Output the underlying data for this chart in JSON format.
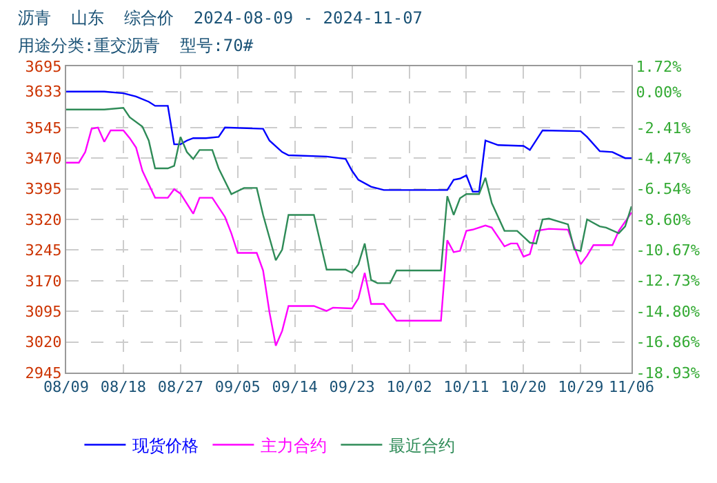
{
  "chart_data": {
    "type": "line",
    "title": "沥青  山东  综合价  2024-08-09 - 2024-11-07",
    "subtitle": "用途分类:重交沥青  型号:70#",
    "series": [
      {
        "name": "现货价格",
        "color": "#0000ff",
        "x": [
          "2024-08-09",
          "2024-08-15",
          "2024-08-18",
          "2024-08-20",
          "2024-08-22",
          "2024-08-23",
          "2024-08-25",
          "2024-08-26",
          "2024-08-27",
          "2024-08-28",
          "2024-08-29",
          "2024-08-31",
          "2024-09-02",
          "2024-09-03",
          "2024-09-09",
          "2024-09-10",
          "2024-09-12",
          "2024-09-13",
          "2024-09-19",
          "2024-09-22",
          "2024-09-23",
          "2024-09-24",
          "2024-09-26",
          "2024-09-28",
          "2024-10-08",
          "2024-10-09",
          "2024-10-10",
          "2024-10-11",
          "2024-10-12",
          "2024-10-13",
          "2024-10-14",
          "2024-10-16",
          "2024-10-20",
          "2024-10-21",
          "2024-10-23",
          "2024-10-29",
          "2024-10-30",
          "2024-11-01",
          "2024-11-03",
          "2024-11-05",
          "2024-11-06"
        ],
        "values": [
          3633,
          3633,
          3629,
          3621,
          3608,
          3598,
          3598,
          3504,
          3504,
          3513,
          3519,
          3519,
          3522,
          3545,
          3542,
          3513,
          3485,
          3477,
          3474,
          3468,
          3439,
          3417,
          3400,
          3392,
          3392,
          3417,
          3420,
          3428,
          3388,
          3388,
          3513,
          3502,
          3500,
          3490,
          3538,
          3536,
          3522,
          3487,
          3485,
          3470,
          3470
        ]
      },
      {
        "name": "主力合约",
        "color": "#ff00ff",
        "x": [
          "2024-08-09",
          "2024-08-11",
          "2024-08-12",
          "2024-08-13",
          "2024-08-14",
          "2024-08-15",
          "2024-08-16",
          "2024-08-18",
          "2024-08-19",
          "2024-08-20",
          "2024-08-21",
          "2024-08-23",
          "2024-08-25",
          "2024-08-26",
          "2024-08-27",
          "2024-08-29",
          "2024-08-30",
          "2024-09-01",
          "2024-09-03",
          "2024-09-04",
          "2024-09-05",
          "2024-09-08",
          "2024-09-09",
          "2024-09-10",
          "2024-09-11",
          "2024-09-12",
          "2024-09-13",
          "2024-09-17",
          "2024-09-19",
          "2024-09-20",
          "2024-09-23",
          "2024-09-24",
          "2024-09-25",
          "2024-09-26",
          "2024-09-28",
          "2024-09-30",
          "2024-10-07",
          "2024-10-08",
          "2024-10-09",
          "2024-10-10",
          "2024-10-11",
          "2024-10-12",
          "2024-10-14",
          "2024-10-15",
          "2024-10-17",
          "2024-10-18",
          "2024-10-19",
          "2024-10-20",
          "2024-10-21",
          "2024-10-22",
          "2024-10-24",
          "2024-10-27",
          "2024-10-28",
          "2024-10-29",
          "2024-10-30",
          "2024-10-31",
          "2024-11-03",
          "2024-11-04",
          "2024-11-06"
        ],
        "values": [
          3459,
          3459,
          3485,
          3542,
          3545,
          3510,
          3538,
          3538,
          3519,
          3496,
          3439,
          3373,
          3373,
          3394,
          3383,
          3334,
          3373,
          3373,
          3326,
          3286,
          3238,
          3238,
          3195,
          3093,
          3011,
          3047,
          3108,
          3108,
          3096,
          3104,
          3102,
          3127,
          3189,
          3113,
          3113,
          3072,
          3072,
          3269,
          3240,
          3243,
          3292,
          3295,
          3305,
          3300,
          3254,
          3261,
          3261,
          3229,
          3235,
          3292,
          3297,
          3295,
          3252,
          3210,
          3231,
          3257,
          3257,
          3292,
          3337
        ]
      },
      {
        "name": "最近合约",
        "color": "#2e8b57",
        "x": [
          "2024-08-09",
          "2024-08-15",
          "2024-08-18",
          "2024-08-19",
          "2024-08-21",
          "2024-08-22",
          "2024-08-23",
          "2024-08-25",
          "2024-08-26",
          "2024-08-27",
          "2024-08-28",
          "2024-08-29",
          "2024-08-30",
          "2024-09-01",
          "2024-09-02",
          "2024-09-04",
          "2024-09-06",
          "2024-09-08",
          "2024-09-09",
          "2024-09-11",
          "2024-09-12",
          "2024-09-13",
          "2024-09-17",
          "2024-09-19",
          "2024-09-22",
          "2024-09-23",
          "2024-09-24",
          "2024-09-25",
          "2024-09-26",
          "2024-09-27",
          "2024-09-29",
          "2024-09-30",
          "2024-10-07",
          "2024-10-08",
          "2024-10-09",
          "2024-10-10",
          "2024-10-11",
          "2024-10-13",
          "2024-10-14",
          "2024-10-15",
          "2024-10-17",
          "2024-10-19",
          "2024-10-21",
          "2024-10-22",
          "2024-10-23",
          "2024-10-24",
          "2024-10-27",
          "2024-10-28",
          "2024-10-29",
          "2024-10-30",
          "2024-11-01",
          "2024-11-02",
          "2024-11-04",
          "2024-11-05",
          "2024-11-06"
        ],
        "values": [
          3589,
          3589,
          3593,
          3570,
          3547,
          3513,
          3445,
          3445,
          3451,
          3522,
          3485,
          3468,
          3490,
          3490,
          3445,
          3382,
          3397,
          3397,
          3331,
          3220,
          3246,
          3331,
          3331,
          3197,
          3197,
          3189,
          3210,
          3261,
          3172,
          3164,
          3164,
          3195,
          3195,
          3377,
          3331,
          3372,
          3382,
          3382,
          3422,
          3360,
          3292,
          3292,
          3263,
          3261,
          3320,
          3322,
          3308,
          3246,
          3243,
          3320,
          3303,
          3300,
          3286,
          3303,
          3352
        ]
      }
    ],
    "xlim": [
      "2024-08-09",
      "2024-11-06"
    ],
    "xticks": [
      {
        "value": "2024-08-09",
        "label": "08/09"
      },
      {
        "value": "2024-08-18",
        "label": "08/18"
      },
      {
        "value": "2024-08-27",
        "label": "08/27"
      },
      {
        "value": "2024-09-05",
        "label": "09/05"
      },
      {
        "value": "2024-09-14",
        "label": "09/14"
      },
      {
        "value": "2024-09-23",
        "label": "09/23"
      },
      {
        "value": "2024-10-02",
        "label": "10/02"
      },
      {
        "value": "2024-10-11",
        "label": "10/11"
      },
      {
        "value": "2024-10-20",
        "label": "10/20"
      },
      {
        "value": "2024-10-29",
        "label": "10/29"
      },
      {
        "value": "2024-11-06",
        "label": "11/06"
      }
    ],
    "ylim": [
      2945,
      3695
    ],
    "yticks": [
      2945,
      3020,
      3095,
      3170,
      3245,
      3320,
      3395,
      3470,
      3545,
      3633,
      3695
    ],
    "y2lim": [
      -18.93,
      1.72
    ],
    "y2ticks": [
      {
        "value": -18.93,
        "label": "-18.93%"
      },
      {
        "value": -16.86,
        "label": "-16.86%"
      },
      {
        "value": -14.8,
        "label": "-14.80%"
      },
      {
        "value": -12.73,
        "label": "-12.73%"
      },
      {
        "value": -10.67,
        "label": "-10.67%"
      },
      {
        "value": -8.6,
        "label": "-8.60%"
      },
      {
        "value": -6.54,
        "label": "-6.54%"
      },
      {
        "value": -4.47,
        "label": "-4.47%"
      },
      {
        "value": -2.41,
        "label": "-2.41%"
      },
      {
        "value": 0,
        "label": "0.00%"
      },
      {
        "value": 1.72,
        "label": "1.72%"
      }
    ],
    "grid": true,
    "legend": "bottom",
    "line_style": "solid",
    "marker": "none"
  }
}
